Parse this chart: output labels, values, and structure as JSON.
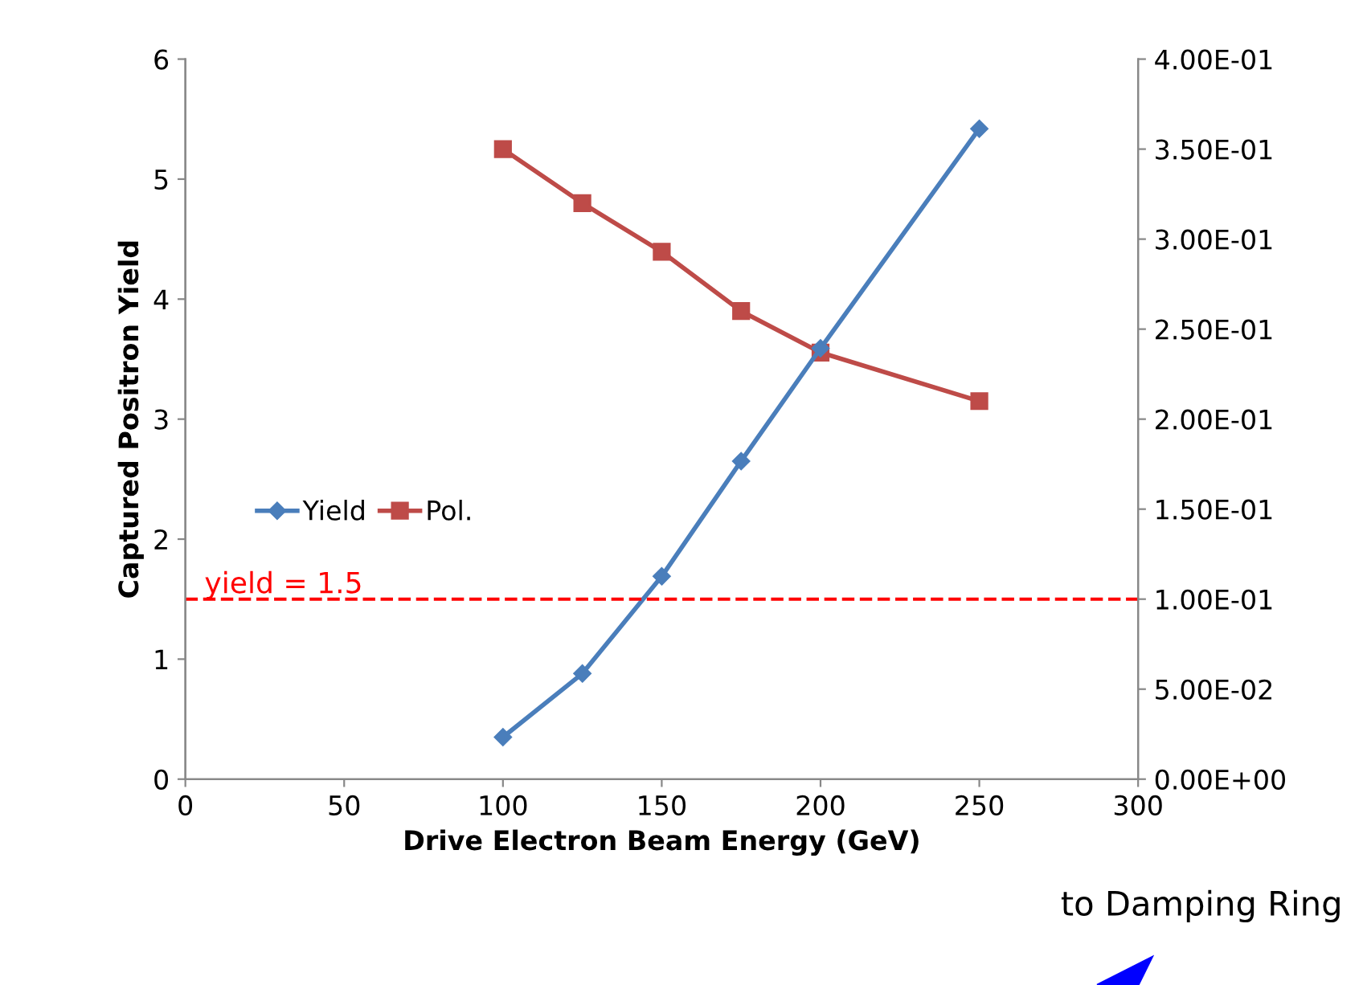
{
  "chart_data": {
    "type": "line",
    "xlabel": "Drive Electron Beam Energy (GeV)",
    "ylabel": "Captured Positron Yield",
    "x": [
      100,
      125,
      150,
      175,
      200,
      250
    ],
    "series": [
      {
        "name": "Yield",
        "color": "#4a7ebb",
        "values": [
          0.35,
          0.88,
          1.69,
          2.65,
          3.59,
          5.42
        ],
        "marker": "diamond"
      },
      {
        "name": "Pol.",
        "color": "#be4b48",
        "values": [
          0.35,
          0.32,
          0.293,
          0.26,
          0.237,
          0.21
        ],
        "axis": "y2",
        "marker": "square"
      }
    ],
    "xlim": [
      0,
      300
    ],
    "xticks": [
      0,
      50,
      100,
      150,
      200,
      250,
      300
    ],
    "ylim": [
      0,
      6
    ],
    "yticks": [
      0,
      1,
      2,
      3,
      4,
      5,
      6
    ],
    "y2lim": [
      0,
      0.4
    ],
    "y2ticks": [
      {
        "value": 0,
        "label": "0.00E+00"
      },
      {
        "value": 0.05,
        "label": "5.00E-02"
      },
      {
        "value": 0.1,
        "label": "1.00E-01"
      },
      {
        "value": 0.15,
        "label": "1.50E-01"
      },
      {
        "value": 0.2,
        "label": "2.00E-01"
      },
      {
        "value": 0.25,
        "label": "2.50E-01"
      },
      {
        "value": 0.3,
        "label": "3.00E-01"
      },
      {
        "value": 0.35,
        "label": "3.50E-01"
      },
      {
        "value": 0.4,
        "label": "4.00E-01"
      }
    ],
    "ref_lines": [
      {
        "axis": "y",
        "value": 1.5,
        "label": "yield = 1.5",
        "color": "#ff0000",
        "line_style": "dashed"
      }
    ],
    "annotations": [
      "to Damping Ring"
    ],
    "legend": "left",
    "grid": false
  }
}
